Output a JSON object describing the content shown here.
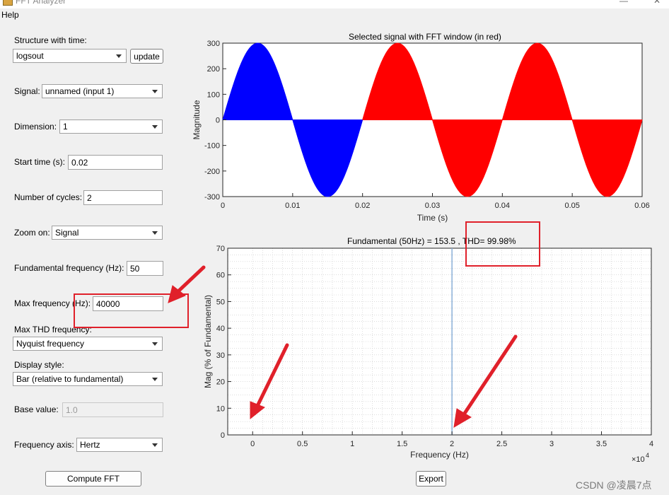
{
  "window": {
    "title": "FFT Analyzer"
  },
  "menu": {
    "help": "Help"
  },
  "controls": {
    "structure_label": "Structure with time:",
    "structure_value": "logsout",
    "update_label": "update",
    "signal_label": "Signal:",
    "signal_value": "unnamed (input 1)",
    "dimension_label": "Dimension:",
    "dimension_value": "1",
    "start_time_label": "Start time (s):",
    "start_time_value": "0.02",
    "cycles_label": "Number of cycles:",
    "cycles_value": "2",
    "zoom_label": "Zoom on:",
    "zoom_value": "Signal",
    "fund_freq_label": "Fundamental frequency (Hz):",
    "fund_freq_value": "50",
    "max_freq_label": "Max frequency (Hz):",
    "max_freq_value": "40000",
    "max_thd_label": "Max THD frequency:",
    "max_thd_value": "Nyquist frequency",
    "display_style_label": "Display style:",
    "display_style_value": "Bar (relative to fundamental)",
    "base_value_label": "Base value:",
    "base_value_value": "1.0",
    "freq_axis_label": "Frequency axis:",
    "freq_axis_value": "Hertz",
    "compute_label": "Compute FFT",
    "export_label": "Export"
  },
  "watermark": "CSDN @凌晨7点",
  "colors": {
    "annotation": "#e0202a",
    "window_signal": "#ff0000",
    "signal": "#0000ff",
    "harmonic_line": "#8ab0d8"
  },
  "chart_data": [
    {
      "type": "area",
      "title": "Selected signal with FFT window (in red)",
      "xlabel": "Time (s)",
      "ylabel": "Magnitude",
      "xlim": [
        0,
        0.06
      ],
      "ylim": [
        -300,
        300
      ],
      "xticks": [
        "0",
        "0.01",
        "0.02",
        "0.03",
        "0.04",
        "0.05",
        "0.06"
      ],
      "yticks": [
        "300",
        "200",
        "100",
        "0",
        "-100",
        "-200",
        "-300"
      ],
      "series": [
        {
          "amplitude": 300,
          "frequency_hz": 50,
          "x_range": [
            0,
            0.02
          ],
          "color": "#0000ff"
        },
        {
          "amplitude": 300,
          "frequency_hz": 50,
          "x_range": [
            0.02,
            0.06
          ],
          "color": "#ff0000"
        }
      ]
    },
    {
      "type": "bar",
      "title": "Fundamental (50Hz) = 153.5 , THD= 99.98%",
      "xlabel": "Frequency (Hz)",
      "ylabel": "Mag (% of Fundamental)",
      "xlim": [
        -2500,
        40000
      ],
      "ylim": [
        0,
        70
      ],
      "xticks": [
        "0",
        "0.5",
        "1",
        "1.5",
        "2",
        "2.5",
        "3",
        "3.5",
        "4"
      ],
      "xtick_values": [
        0,
        5000,
        10000,
        15000,
        20000,
        25000,
        30000,
        35000,
        40000
      ],
      "x_multiplier": "×10",
      "x_multiplier_exp": "4",
      "yticks": [
        "0",
        "10",
        "20",
        "30",
        "40",
        "50",
        "60",
        "70"
      ],
      "bars": [
        {
          "x": 20000,
          "value": 70
        }
      ]
    }
  ]
}
